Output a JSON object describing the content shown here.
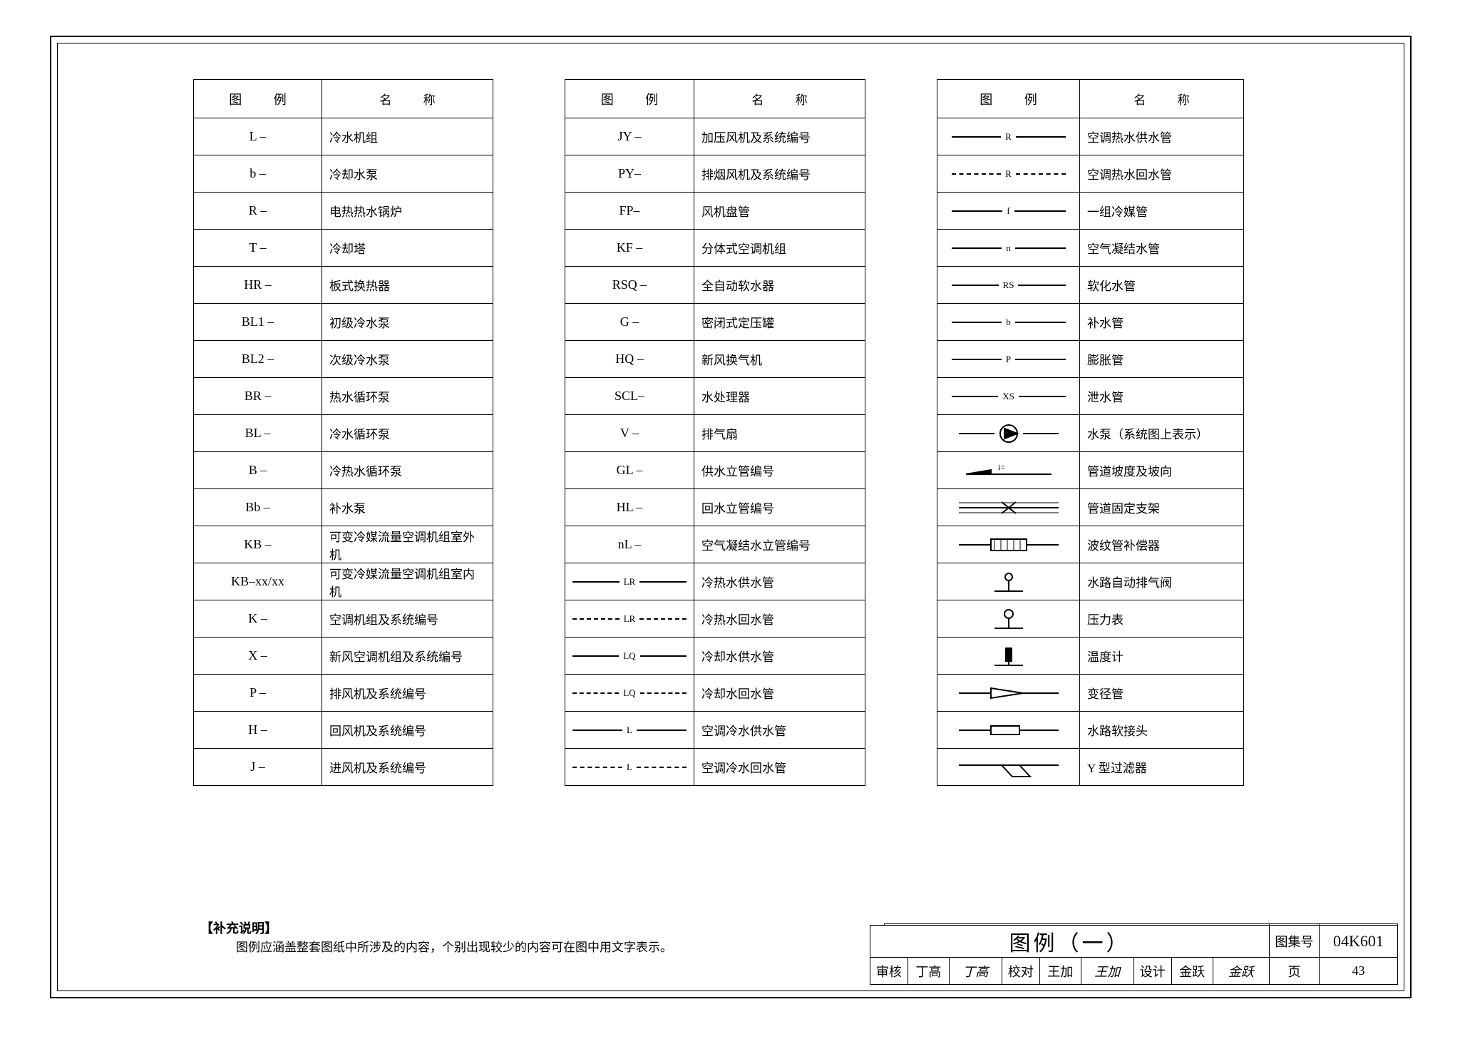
{
  "header": {
    "sym": "图  例",
    "name": "名  称"
  },
  "table1": [
    {
      "sym": "L –",
      "name": "冷水机组"
    },
    {
      "sym": "b –",
      "name": "冷却水泵"
    },
    {
      "sym": "R –",
      "name": "电热热水锅炉"
    },
    {
      "sym": "T –",
      "name": "冷却塔"
    },
    {
      "sym": "HR –",
      "name": "板式换热器"
    },
    {
      "sym": "BL1 –",
      "name": "初级冷水泵"
    },
    {
      "sym": "BL2 –",
      "name": "次级冷水泵"
    },
    {
      "sym": "BR –",
      "name": "热水循环泵"
    },
    {
      "sym": "BL –",
      "name": "冷水循环泵"
    },
    {
      "sym": "B –",
      "name": "冷热水循环泵"
    },
    {
      "sym": "Bb –",
      "name": "补水泵"
    },
    {
      "sym": "KB –",
      "name": "可变冷媒流量空调机组室外机"
    },
    {
      "sym": "KB–xx/xx",
      "name": "可变冷媒流量空调机组室内机"
    },
    {
      "sym": "K –",
      "name": "空调机组及系统编号"
    },
    {
      "sym": "X –",
      "name": "新风空调机组及系统编号"
    },
    {
      "sym": "P –",
      "name": "排风机及系统编号"
    },
    {
      "sym": "H –",
      "name": "回风机及系统编号"
    },
    {
      "sym": "J –",
      "name": "进风机及系统编号"
    }
  ],
  "table2": [
    {
      "sym": "JY –",
      "name": "加压风机及系统编号"
    },
    {
      "sym": "PY–",
      "name": "排烟风机及系统编号"
    },
    {
      "sym": "FP–",
      "name": "风机盘管"
    },
    {
      "sym": "KF –",
      "name": "分体式空调机组"
    },
    {
      "sym": "RSQ –",
      "name": "全自动软水器"
    },
    {
      "sym": "G –",
      "name": "密闭式定压罐"
    },
    {
      "sym": "HQ –",
      "name": "新风换气机"
    },
    {
      "sym": "SCL–",
      "name": "水处理器"
    },
    {
      "sym": "V –",
      "name": "排气扇"
    },
    {
      "sym": "GL –",
      "name": "供水立管编号"
    },
    {
      "sym": "HL –",
      "name": "回水立管编号"
    },
    {
      "sym": "nL –",
      "name": "空气凝结水立管编号"
    },
    {
      "kind": "line",
      "style": "solid",
      "lbl": "LR",
      "name": "冷热水供水管"
    },
    {
      "kind": "line",
      "style": "dash",
      "lbl": "LR",
      "name": "冷热水回水管"
    },
    {
      "kind": "line",
      "style": "solid",
      "lbl": "LQ",
      "name": "冷却水供水管"
    },
    {
      "kind": "line",
      "style": "dash",
      "lbl": "LQ",
      "name": "冷却水回水管"
    },
    {
      "kind": "line",
      "style": "solid",
      "lbl": "L",
      "name": "空调冷水供水管"
    },
    {
      "kind": "line",
      "style": "dash",
      "lbl": "L",
      "name": "空调冷水回水管"
    }
  ],
  "table3": [
    {
      "kind": "line",
      "style": "solid",
      "lbl": "R",
      "name": "空调热水供水管"
    },
    {
      "kind": "line",
      "style": "dash",
      "lbl": "R",
      "name": "空调热水回水管"
    },
    {
      "kind": "line",
      "style": "solid",
      "lbl": "f",
      "name": "一组冷媒管"
    },
    {
      "kind": "line",
      "style": "solid",
      "lbl": "n",
      "name": "空气凝结水管"
    },
    {
      "kind": "line",
      "style": "solid",
      "lbl": "RS",
      "name": "软化水管"
    },
    {
      "kind": "line",
      "style": "solid",
      "lbl": "b",
      "name": "补水管"
    },
    {
      "kind": "line",
      "style": "solid",
      "lbl": "P",
      "name": "膨胀管"
    },
    {
      "kind": "line",
      "style": "solid",
      "lbl": "XS",
      "name": "泄水管"
    },
    {
      "kind": "svg",
      "svg": "pump",
      "name": "水泵（系统图上表示）"
    },
    {
      "kind": "svg",
      "svg": "slope",
      "name": "管道坡度及坡向"
    },
    {
      "kind": "svg",
      "svg": "bracket",
      "name": "管道固定支架"
    },
    {
      "kind": "svg",
      "svg": "bellows",
      "name": "波纹管补偿器"
    },
    {
      "kind": "svg",
      "svg": "vent",
      "name": "水路自动排气阀"
    },
    {
      "kind": "svg",
      "svg": "gauge",
      "name": "压力表"
    },
    {
      "kind": "svg",
      "svg": "thermo",
      "name": "温度计"
    },
    {
      "kind": "svg",
      "svg": "reducer",
      "name": "变径管"
    },
    {
      "kind": "svg",
      "svg": "flex",
      "name": "水路软接头"
    },
    {
      "kind": "svg",
      "svg": "yfilter",
      "name": "Y 型过滤器"
    }
  ],
  "note": {
    "title": "【补充说明】",
    "body": "图例应涵盖整套图纸中所涉及的内容，个别出现较少的内容可在图中用文字表示。"
  },
  "titleblock": {
    "title": "图例（一）",
    "set_label": "图集号",
    "set_no": "04K601",
    "check": "审核",
    "check_name": "丁高",
    "check_sig": "丁高",
    "proof": "校对",
    "proof_name": "王加",
    "proof_sig": "王加",
    "design": "设计",
    "design_name": "金跃",
    "design_sig": "金跃",
    "page_label": "页",
    "page_no": "43"
  },
  "colors": {
    "line": "#000000",
    "bg": "#ffffff"
  }
}
